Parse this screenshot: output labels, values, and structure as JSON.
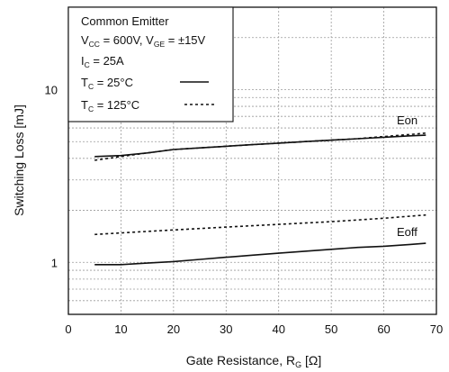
{
  "chart_data": {
    "type": "line",
    "xlabel_main": "Gate Resistance, R",
    "xlabel_sub": "G",
    "xlabel_unit": " [Ω]",
    "ylabel": "Switching Loss [mJ]",
    "xlim": [
      0,
      70
    ],
    "ylim": [
      0.5,
      30
    ],
    "yscale": "log",
    "grid": true,
    "x_ticks": [
      0,
      10,
      20,
      30,
      40,
      50,
      60,
      70
    ],
    "y_tick_labels": [
      {
        "value": 1,
        "label": "1"
      },
      {
        "value": 10,
        "label": "10"
      }
    ],
    "legend": {
      "placement": "top-left",
      "line1": "Common Emitter",
      "line2_a": "V",
      "line2_a_sub": "CC",
      "line2_b": " = 600V, V",
      "line2_b_sub": "GE",
      "line2_c": " = ±15V",
      "line3_a": "I",
      "line3_a_sub": "C",
      "line3_b": " = 25A",
      "line4_a": "T",
      "line4_a_sub": "C",
      "line4_b": " = 25°C",
      "line5_a": "T",
      "line5_a_sub": "C",
      "line5_b": " = 125°C"
    },
    "series": [
      {
        "name": "Eon",
        "condition": "25C",
        "style": "solid",
        "x": [
          5,
          10,
          15,
          20,
          25,
          30,
          35,
          40,
          45,
          50,
          55,
          60,
          65,
          68
        ],
        "y": [
          4.1,
          4.15,
          4.3,
          4.5,
          4.6,
          4.7,
          4.8,
          4.9,
          5.0,
          5.1,
          5.2,
          5.3,
          5.4,
          5.45
        ]
      },
      {
        "name": "Eon",
        "condition": "125C",
        "style": "dashed",
        "x": [
          5,
          10,
          15,
          20,
          25,
          30,
          35,
          40,
          45,
          50,
          55,
          60,
          65,
          68
        ],
        "y": [
          3.9,
          4.1,
          4.3,
          4.5,
          4.6,
          4.7,
          4.8,
          4.9,
          5.0,
          5.1,
          5.2,
          5.35,
          5.5,
          5.6
        ]
      },
      {
        "name": "Eoff",
        "condition": "25C",
        "style": "solid",
        "x": [
          5,
          10,
          15,
          20,
          25,
          30,
          35,
          40,
          45,
          50,
          55,
          60,
          65,
          68
        ],
        "y": [
          0.97,
          0.97,
          0.99,
          1.01,
          1.04,
          1.07,
          1.1,
          1.13,
          1.16,
          1.19,
          1.22,
          1.24,
          1.27,
          1.29
        ]
      },
      {
        "name": "Eoff",
        "condition": "125C",
        "style": "dashed",
        "x": [
          5,
          10,
          15,
          20,
          25,
          30,
          35,
          40,
          45,
          50,
          55,
          60,
          65,
          68
        ],
        "y": [
          1.45,
          1.48,
          1.51,
          1.54,
          1.57,
          1.6,
          1.63,
          1.66,
          1.69,
          1.72,
          1.76,
          1.8,
          1.85,
          1.88
        ]
      }
    ],
    "annotations": [
      "Eon",
      "Eoff"
    ]
  }
}
